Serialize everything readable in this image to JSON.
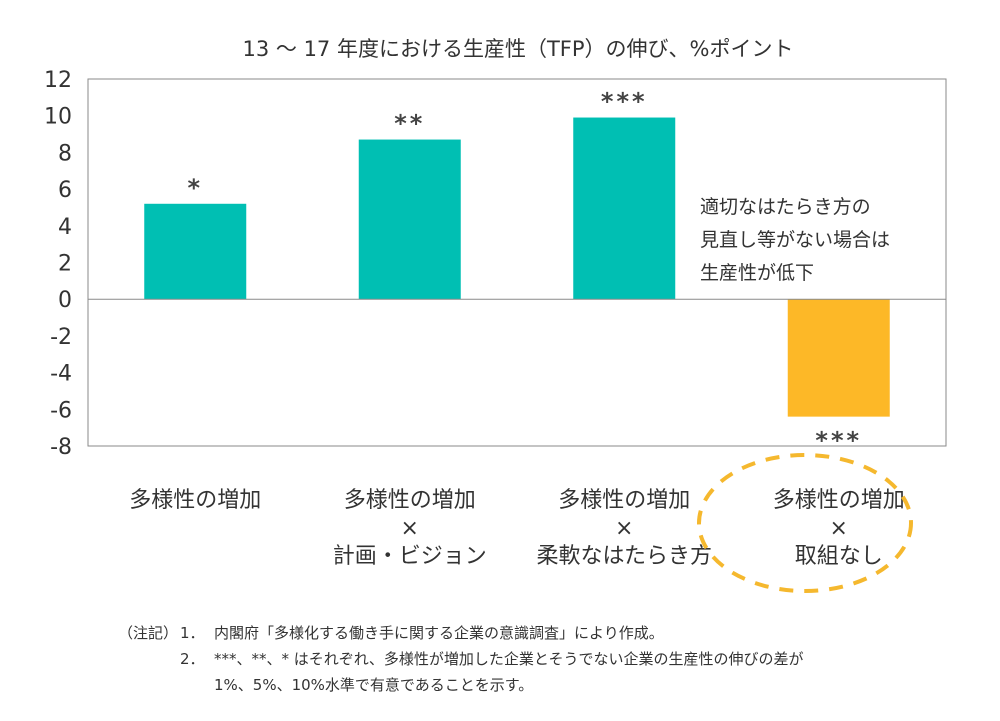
{
  "chart_data": {
    "type": "bar",
    "title": "13 ～ 17 年度における生産性（TFP）の伸び、%ポイント",
    "categories": [
      [
        "多様性の増加"
      ],
      [
        "多様性の増加",
        "×",
        "計画・ビジョン"
      ],
      [
        "多様性の増加",
        "×",
        "柔軟なはたらき方"
      ],
      [
        "多様性の増加",
        "×",
        "取組なし"
      ]
    ],
    "values": [
      5.2,
      8.7,
      9.9,
      -6.4
    ],
    "significance": [
      "*",
      "**",
      "***",
      "***"
    ],
    "ylim": [
      -8,
      12
    ],
    "yticks": [
      "12",
      "10",
      "8",
      "6",
      "4",
      "2",
      "0",
      "-2",
      "-4",
      "-6",
      "-8"
    ],
    "colors": [
      "#00BFB3",
      "#00BFB3",
      "#00BFB3",
      "#FDB827"
    ],
    "highlight_color": "#F5B82E",
    "annotation": [
      "適切なはたらき方の",
      "見直し等がない場合は",
      "生産性が低下"
    ],
    "grid": false
  },
  "notes": {
    "label": "（注記）",
    "items": [
      {
        "num": "1．",
        "lines": [
          "内閣府「多様化する働き手に関する企業の意識調査」により作成。"
        ]
      },
      {
        "num": "2．",
        "lines": [
          "***、**、* はそれぞれ、多様性が増加した企業とそうでない企業の生産性の伸びの差が",
          "1%、5%、10%水準で有意であることを示す。"
        ]
      }
    ]
  }
}
